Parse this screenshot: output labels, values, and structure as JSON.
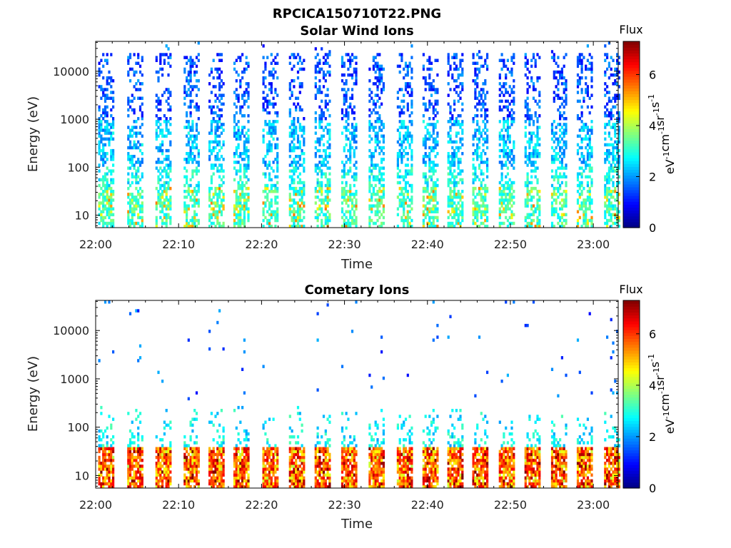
{
  "figure": {
    "main_title": "RPCICA150710T22.PNG"
  },
  "chart_data": [
    {
      "type": "heatmap",
      "title": "Solar Wind Ions",
      "xlabel": "Time",
      "ylabel": "Energy (eV)",
      "x_ticks": [
        "22:00",
        "22:10",
        "22:20",
        "22:30",
        "22:40",
        "22:50",
        "23:00"
      ],
      "xlim": [
        "22:00",
        "23:03"
      ],
      "y_ticks": [
        "10",
        "100",
        "1000",
        "10000"
      ],
      "ylim": [
        5.5,
        42000
      ],
      "yscale": "log",
      "colorbar": {
        "title": "Flux",
        "label": "eV-1cm-2sr-1s-1",
        "label_main": [
          "eV",
          "cm",
          "sr",
          "s"
        ],
        "label_exponent": "-1",
        "ticks": [
          "0",
          "2",
          "4",
          "6"
        ],
        "range": [
          0,
          7.3
        ],
        "colormap": "jet"
      },
      "sweeps_start_minutes": [
        0.3,
        3.8,
        7.2,
        10.6,
        13.6,
        16.6,
        20.1,
        23.3,
        26.4,
        29.6,
        32.9,
        36.3,
        39.4,
        42.4,
        45.4,
        48.6,
        51.7,
        54.9,
        58.0,
        61.3
      ],
      "sweep_duration_minutes": 1.9,
      "typical_flux": {
        "energy_above_1000": 1.5,
        "energy_100_to_1000": 2.3,
        "energy_below_100": 3.2,
        "peak": 4.9
      }
    },
    {
      "type": "heatmap",
      "title": "Cometary Ions",
      "xlabel": "Time",
      "ylabel": "Energy (eV)",
      "x_ticks": [
        "22:00",
        "22:10",
        "22:20",
        "22:30",
        "22:40",
        "22:50",
        "23:00"
      ],
      "xlim": [
        "22:00",
        "23:03"
      ],
      "y_ticks": [
        "10",
        "100",
        "1000",
        "10000"
      ],
      "ylim": [
        5.5,
        42000
      ],
      "yscale": "log",
      "colorbar": {
        "title": "Flux",
        "label": "eV-1cm-2sr-1s-1",
        "label_main": [
          "eV",
          "cm",
          "sr",
          "s"
        ],
        "label_exponent": "-1",
        "ticks": [
          "0",
          "2",
          "4",
          "6"
        ],
        "range": [
          0,
          7.3
        ],
        "colormap": "jet"
      },
      "sweeps_start_minutes": [
        0.3,
        3.8,
        7.2,
        10.6,
        13.6,
        16.6,
        20.1,
        23.3,
        26.4,
        29.6,
        32.9,
        36.3,
        39.4,
        42.4,
        45.4,
        48.6,
        51.7,
        54.9,
        58.0,
        61.3
      ],
      "sweep_duration_minutes": 1.9,
      "typical_flux": {
        "energy_8_to_40": 5.5,
        "energy_40_to_300": 2.7,
        "background_above_300": 1.6,
        "peak": 6.8
      }
    }
  ]
}
